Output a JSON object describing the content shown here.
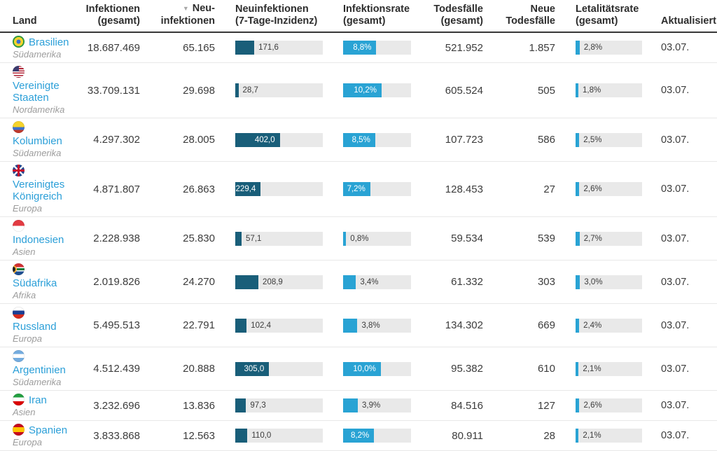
{
  "colors": {
    "bar_dark": "#195e79",
    "bar_light": "#29a3d4",
    "link_blue": "#2b9fd8",
    "track_gray": "#e9e9e9"
  },
  "header": {
    "land": "Land",
    "infections": {
      "l1": "Infektionen",
      "l2": "(gesamt)"
    },
    "new_infections": {
      "sort_icon": "▼",
      "l1": "Neu-",
      "l2": "infektionen"
    },
    "incidence": {
      "l1": "Neuinfektionen",
      "l2": "(7-Tage-Inzidenz)"
    },
    "rate": {
      "l1": "Infektionsrate",
      "l2": "(gesamt)"
    },
    "deaths": {
      "l1": "Todesfälle",
      "l2": "(gesamt)"
    },
    "new_deaths": {
      "l1": "Neue",
      "l2": "Todesfälle"
    },
    "lethality": {
      "l1": "Letalitätsrate",
      "l2": "(gesamt)"
    },
    "updated": "Aktualisiert"
  },
  "bar_scales": {
    "incidence_max": 790,
    "infection_rate_max": 18,
    "lethality_max": 45
  },
  "rows": [
    {
      "cc": "br",
      "country": "Brasilien",
      "region": "Südamerika",
      "stacked": false,
      "infections": "18.687.469",
      "new_infections": "65.165",
      "incidence": 171.6,
      "incidence_label": "171,6",
      "rate": 8.8,
      "rate_label": "8,8%",
      "deaths": "521.952",
      "new_deaths": "1.857",
      "lethality": 2.8,
      "lethality_label": "2,8%",
      "updated": "03.07."
    },
    {
      "cc": "us",
      "country": "Vereinigte Staaten",
      "region": "Nordamerika",
      "stacked": true,
      "infections": "33.709.131",
      "new_infections": "29.698",
      "incidence": 28.7,
      "incidence_label": "28,7",
      "rate": 10.2,
      "rate_label": "10,2%",
      "deaths": "605.524",
      "new_deaths": "505",
      "lethality": 1.8,
      "lethality_label": "1,8%",
      "updated": "03.07."
    },
    {
      "cc": "co",
      "country": "Kolumbien",
      "region": "Südamerika",
      "stacked": true,
      "infections": "4.297.302",
      "new_infections": "28.005",
      "incidence": 402.0,
      "incidence_label": "402,0",
      "rate": 8.5,
      "rate_label": "8,5%",
      "deaths": "107.723",
      "new_deaths": "586",
      "lethality": 2.5,
      "lethality_label": "2,5%",
      "updated": "03.07."
    },
    {
      "cc": "gb",
      "country": "Vereinigtes Königreich",
      "region": "Europa",
      "stacked": true,
      "infections": "4.871.807",
      "new_infections": "26.863",
      "incidence": 229.4,
      "incidence_label": "229,4",
      "rate": 7.2,
      "rate_label": "7,2%",
      "deaths": "128.453",
      "new_deaths": "27",
      "lethality": 2.6,
      "lethality_label": "2,6%",
      "updated": "03.07."
    },
    {
      "cc": "id",
      "country": "Indonesien",
      "region": "Asien",
      "stacked": true,
      "infections": "2.228.938",
      "new_infections": "25.830",
      "incidence": 57.1,
      "incidence_label": "57,1",
      "rate": 0.8,
      "rate_label": "0,8%",
      "deaths": "59.534",
      "new_deaths": "539",
      "lethality": 2.7,
      "lethality_label": "2,7%",
      "updated": "03.07."
    },
    {
      "cc": "za",
      "country": "Südafrika",
      "region": "Afrika",
      "stacked": true,
      "infections": "2.019.826",
      "new_infections": "24.270",
      "incidence": 208.9,
      "incidence_label": "208,9",
      "rate": 3.4,
      "rate_label": "3,4%",
      "deaths": "61.332",
      "new_deaths": "303",
      "lethality": 3.0,
      "lethality_label": "3,0%",
      "updated": "03.07."
    },
    {
      "cc": "ru",
      "country": "Russland",
      "region": "Europa",
      "stacked": true,
      "infections": "5.495.513",
      "new_infections": "22.791",
      "incidence": 102.4,
      "incidence_label": "102,4",
      "rate": 3.8,
      "rate_label": "3,8%",
      "deaths": "134.302",
      "new_deaths": "669",
      "lethality": 2.4,
      "lethality_label": "2,4%",
      "updated": "03.07."
    },
    {
      "cc": "ar",
      "country": "Argentinien",
      "region": "Südamerika",
      "stacked": true,
      "infections": "4.512.439",
      "new_infections": "20.888",
      "incidence": 305.0,
      "incidence_label": "305,0",
      "rate": 10.0,
      "rate_label": "10,0%",
      "deaths": "95.382",
      "new_deaths": "610",
      "lethality": 2.1,
      "lethality_label": "2,1%",
      "updated": "03.07."
    },
    {
      "cc": "ir",
      "country": "Iran",
      "region": "Asien",
      "stacked": false,
      "infections": "3.232.696",
      "new_infections": "13.836",
      "incidence": 97.3,
      "incidence_label": "97,3",
      "rate": 3.9,
      "rate_label": "3,9%",
      "deaths": "84.516",
      "new_deaths": "127",
      "lethality": 2.6,
      "lethality_label": "2,6%",
      "updated": "03.07."
    },
    {
      "cc": "es",
      "country": "Spanien",
      "region": "Europa",
      "stacked": false,
      "infections": "3.833.868",
      "new_infections": "12.563",
      "incidence": 110.0,
      "incidence_label": "110,0",
      "rate": 8.2,
      "rate_label": "8,2%",
      "deaths": "80.911",
      "new_deaths": "28",
      "lethality": 2.1,
      "lethality_label": "2,1%",
      "updated": "03.07."
    }
  ]
}
